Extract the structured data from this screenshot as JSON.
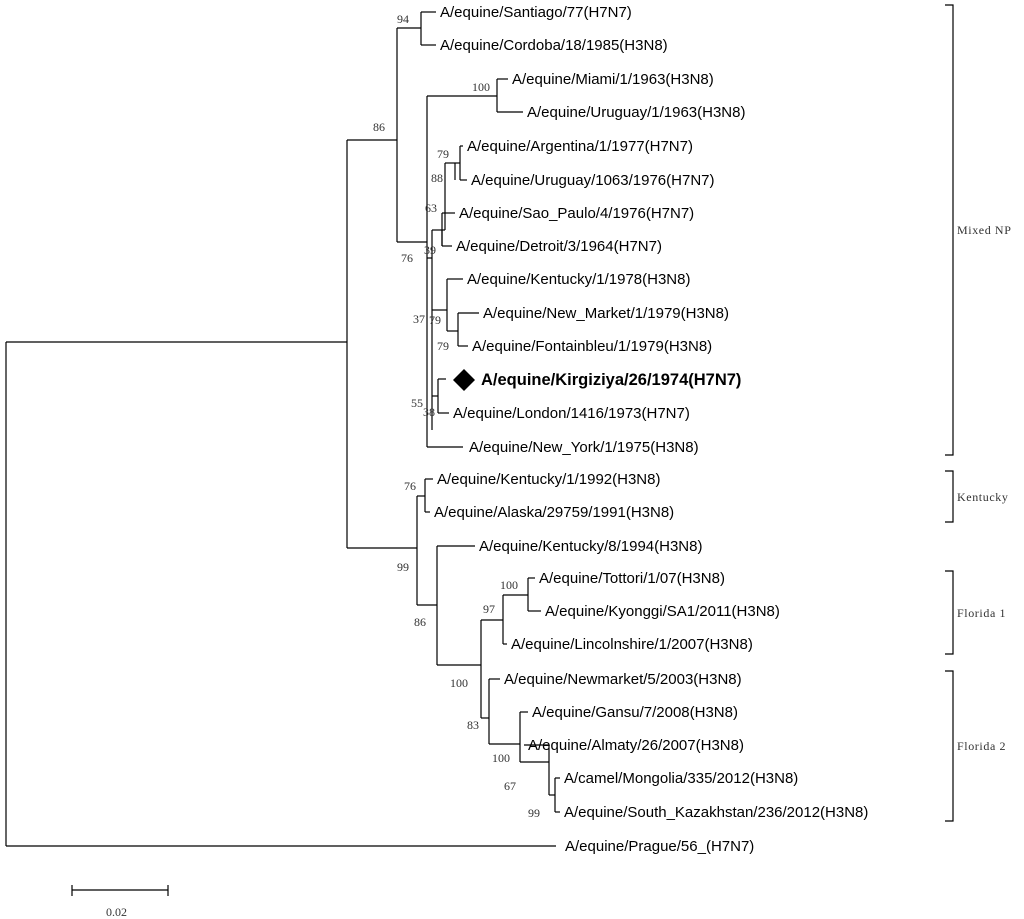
{
  "tree": {
    "leaves": [
      "A/equine/Santiago/77(H7N7)",
      "A/equine/Cordoba/18/1985(H3N8)",
      "A/equine/Miami/1/1963(H3N8)",
      "A/equine/Uruguay/1/1963(H3N8)",
      "A/equine/Argentina/1/1977(H7N7)",
      "A/equine/Uruguay/1063/1976(H7N7)",
      "A/equine/Sao_Paulo/4/1976(H7N7)",
      "A/equine/Detroit/3/1964(H7N7)",
      "A/equine/Kentucky/1/1978(H3N8)",
      "A/equine/New_Market/1/1979(H3N8)",
      "A/equine/Fontainbleu/1/1979(H3N8)",
      "A/equine/Kirgiziya/26/1974(H7N7)",
      "A/equine/London/1416/1973(H7N7)",
      "A/equine/New_York/1/1975(H3N8)",
      "A/equine/Kentucky/1/1992(H3N8)",
      "A/equine/Alaska/29759/1991(H3N8)",
      "A/equine/Kentucky/8/1994(H3N8)",
      "A/equine/Tottori/1/07(H3N8)",
      "A/equine/Kyonggi/SA1/2011(H3N8)",
      "A/equine/Lincolnshire/1/2007(H3N8)",
      "A/equine/Newmarket/5/2003(H3N8)",
      "A/equine/Gansu/7/2008(H3N8)",
      "A/equine/Almaty/26/2007(H3N8)",
      "A/camel/Mongolia/335/2012(H3N8)",
      "A/equine/South_Kazakhstan/236/2012(H3N8)",
      "A/equine/Prague/56_(H7N7)"
    ],
    "highlighted_leaf": "A/equine/Kirgiziya/26/1974(H7N7)",
    "highlight_marker": "diamond-icon",
    "bootstrap_values": [
      "94",
      "100",
      "86",
      "79",
      "88",
      "63",
      "39",
      "76",
      "37",
      "79",
      "79",
      "55",
      "38",
      "76",
      "99",
      "100",
      "97",
      "86",
      "100",
      "83",
      "100",
      "67",
      "99"
    ],
    "clades": [
      "Mixed NP",
      "Kentucky",
      "Florida 1",
      "Florida 2"
    ],
    "scale_bar": "0.02"
  }
}
